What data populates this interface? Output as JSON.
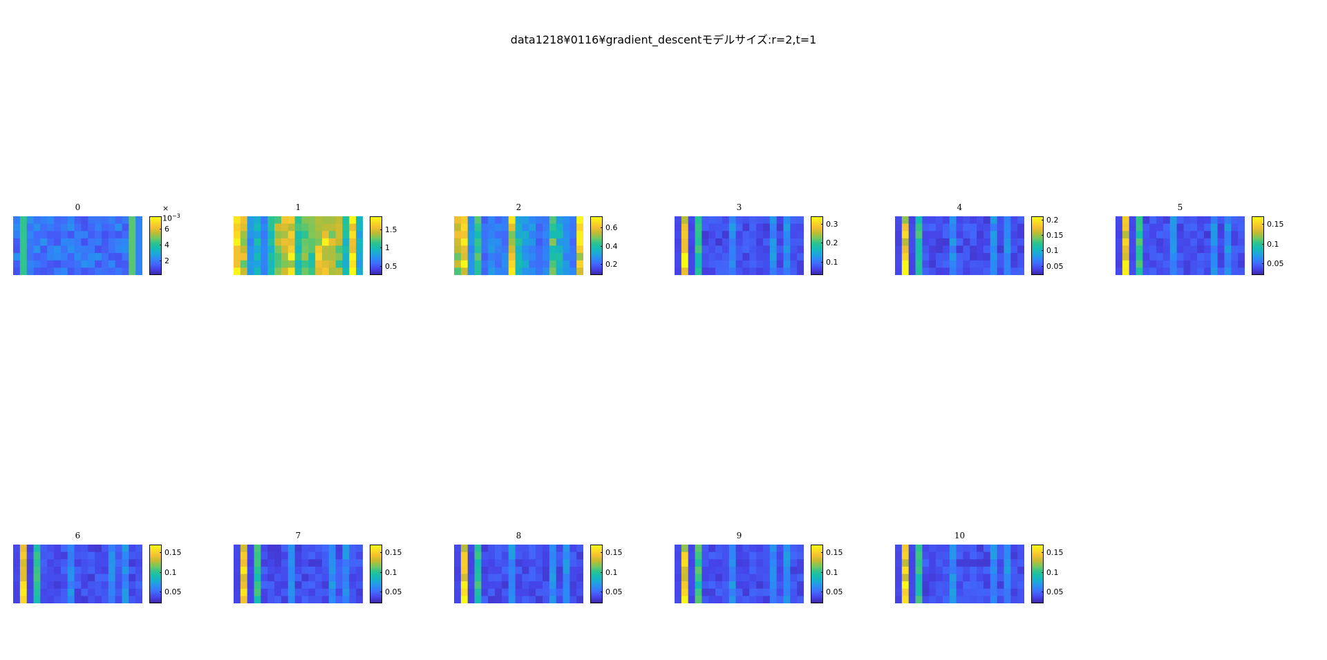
{
  "suptitle": "data1218¥0116¥gradient_descentモデルサイズ:r=2,t=1",
  "colormap": [
    "#3e26a8",
    "#4543e8",
    "#4268fb",
    "#2c8af5",
    "#1ca8d8",
    "#15bbb4",
    "#2dc48e",
    "#78c75d",
    "#c4bb30",
    "#f2c031",
    "#fbdc24",
    "#f9fb15"
  ],
  "chart_data": [
    {
      "type": "heatmap",
      "title": "0",
      "grid": [
        8,
        19
      ],
      "clim": [
        0.0002,
        0.0075
      ],
      "colorbar_ticks": [
        "2",
        "4",
        "6"
      ],
      "colorbar_tick_values": [
        2,
        4,
        6
      ],
      "exponent_label": "× 10",
      "exponent": "−3"
    },
    {
      "type": "heatmap",
      "title": "1",
      "grid": [
        8,
        19
      ],
      "clim": [
        0.25,
        1.85
      ],
      "colorbar_ticks": [
        "0.5",
        "1",
        "1.5"
      ],
      "colorbar_tick_values": [
        0.5,
        1,
        1.5
      ]
    },
    {
      "type": "heatmap",
      "title": "2",
      "grid": [
        8,
        19
      ],
      "clim": [
        0.08,
        0.72
      ],
      "colorbar_ticks": [
        "0.2",
        "0.4",
        "0.6"
      ],
      "colorbar_tick_values": [
        0.2,
        0.4,
        0.6
      ]
    },
    {
      "type": "heatmap",
      "title": "3",
      "grid": [
        8,
        19
      ],
      "clim": [
        0.03,
        0.34
      ],
      "colorbar_ticks": [
        "0.1",
        "0.2",
        "0.3"
      ],
      "colorbar_tick_values": [
        0.1,
        0.2,
        0.3
      ]
    },
    {
      "type": "heatmap",
      "title": "4",
      "grid": [
        8,
        19
      ],
      "clim": [
        0.02,
        0.21
      ],
      "colorbar_ticks": [
        "0.05",
        "0.1",
        "0.15",
        "0.2"
      ],
      "colorbar_tick_values": [
        0.05,
        0.1,
        0.15,
        0.2
      ]
    },
    {
      "type": "heatmap",
      "title": "5",
      "grid": [
        8,
        19
      ],
      "clim": [
        0.02,
        0.17
      ],
      "colorbar_ticks": [
        "0.05",
        "0.1",
        "0.15"
      ],
      "colorbar_tick_values": [
        0.05,
        0.1,
        0.15
      ]
    },
    {
      "type": "heatmap",
      "title": "6",
      "grid": [
        8,
        19
      ],
      "clim": [
        0.02,
        0.17
      ],
      "colorbar_ticks": [
        "0.05",
        "0.1",
        "0.15"
      ],
      "colorbar_tick_values": [
        0.05,
        0.1,
        0.15
      ]
    },
    {
      "type": "heatmap",
      "title": "7",
      "grid": [
        8,
        19
      ],
      "clim": [
        0.02,
        0.17
      ],
      "colorbar_ticks": [
        "0.05",
        "0.1",
        "0.15"
      ],
      "colorbar_tick_values": [
        0.05,
        0.1,
        0.15
      ]
    },
    {
      "type": "heatmap",
      "title": "8",
      "grid": [
        8,
        19
      ],
      "clim": [
        0.02,
        0.17
      ],
      "colorbar_ticks": [
        "0.05",
        "0.1",
        "0.15"
      ],
      "colorbar_tick_values": [
        0.05,
        0.1,
        0.15
      ]
    },
    {
      "type": "heatmap",
      "title": "9",
      "grid": [
        8,
        19
      ],
      "clim": [
        0.02,
        0.17
      ],
      "colorbar_ticks": [
        "0.05",
        "0.1",
        "0.15"
      ],
      "colorbar_tick_values": [
        0.05,
        0.1,
        0.15
      ]
    },
    {
      "type": "heatmap",
      "title": "10",
      "grid": [
        8,
        19
      ],
      "clim": [
        0.02,
        0.17
      ],
      "colorbar_ticks": [
        "0.05",
        "0.1",
        "0.15"
      ],
      "colorbar_tick_values": [
        0.05,
        0.1,
        0.15
      ]
    }
  ]
}
